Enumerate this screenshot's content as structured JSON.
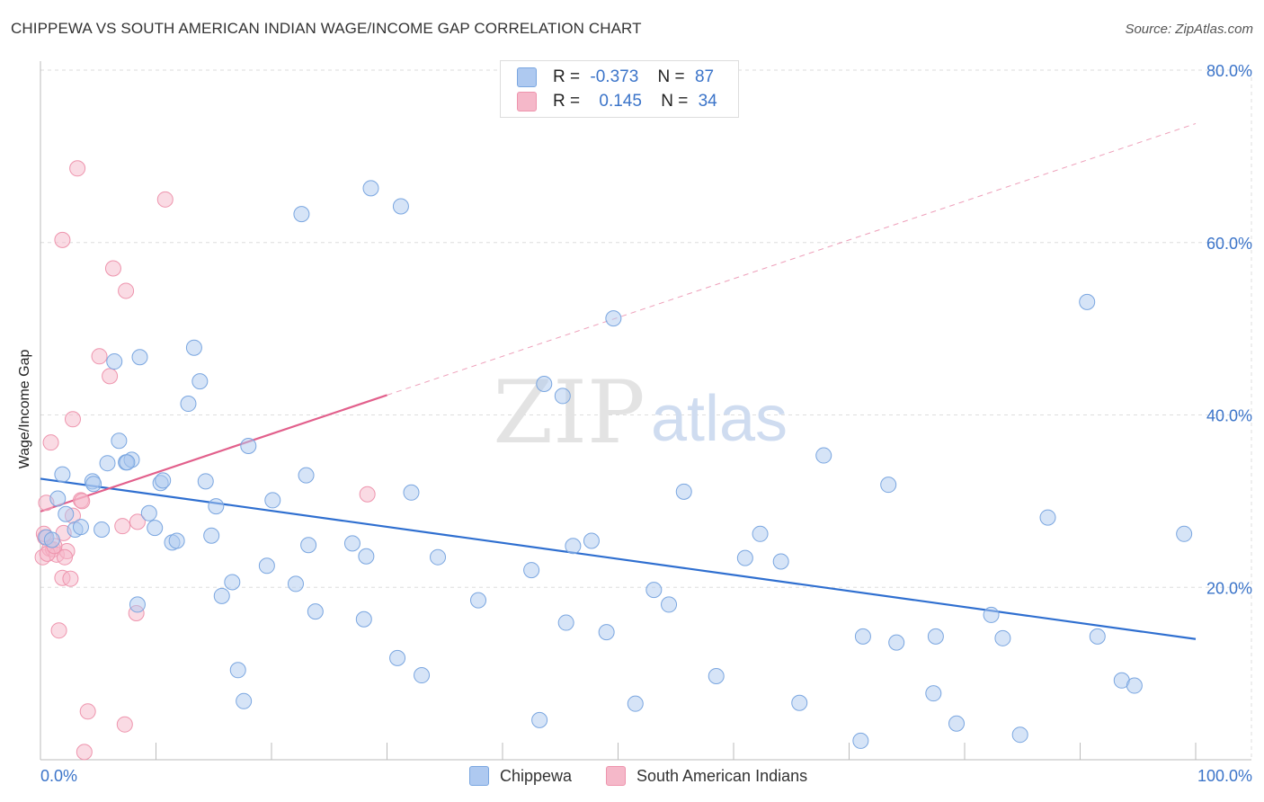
{
  "title": "CHIPPEWA VS SOUTH AMERICAN INDIAN WAGE/INCOME GAP CORRELATION CHART",
  "source": "Source: ZipAtlas.com",
  "watermark": {
    "zip": "ZIP",
    "atlas": "atlas"
  },
  "colors": {
    "blue_fill": "#aec9f0",
    "blue_stroke": "#7aa6e0",
    "blue_line": "#2f6fd0",
    "pink_fill": "#f5b8c9",
    "pink_stroke": "#ee94ad",
    "pink_line": "#e2608c",
    "axis_text": "#3b74c9",
    "grid": "#dddddd"
  },
  "legend": {
    "row1": {
      "r_label": "R =",
      "r_value": "-0.373",
      "n_label": "N =",
      "n_value": "87"
    },
    "row2": {
      "r_label": "R =",
      "r_value": "0.145",
      "n_label": "N =",
      "n_value": "34"
    }
  },
  "chart_data": {
    "type": "scatter",
    "title": "CHIPPEWA VS SOUTH AMERICAN INDIAN WAGE/INCOME GAP CORRELATION CHART",
    "xlabel": "",
    "ylabel": "Wage/Income Gap",
    "xlim": [
      0,
      100
    ],
    "ylim": [
      0,
      80
    ],
    "x_tick_labels": [
      "0.0%",
      "100.0%"
    ],
    "y_ticks": [
      20,
      40,
      60,
      80
    ],
    "y_tick_labels": [
      "20.0%",
      "40.0%",
      "60.0%",
      "80.0%"
    ],
    "grid": true,
    "legend_position": "top-center",
    "series": [
      {
        "name": "Chippewa",
        "color": "#aec9f0",
        "trend": {
          "x": [
            0,
            100
          ],
          "y": [
            32.6,
            14.0
          ],
          "style": "solid"
        },
        "points": [
          [
            0.5,
            25.8
          ],
          [
            1.0,
            25.5
          ],
          [
            1.5,
            30.3
          ],
          [
            1.9,
            33.1
          ],
          [
            2.2,
            28.5
          ],
          [
            3.0,
            26.7
          ],
          [
            3.5,
            27.0
          ],
          [
            4.5,
            32.3
          ],
          [
            5.3,
            26.7
          ],
          [
            5.8,
            34.4
          ],
          [
            6.4,
            46.2
          ],
          [
            6.8,
            37.0
          ],
          [
            7.4,
            34.5
          ],
          [
            7.9,
            34.8
          ],
          [
            8.6,
            46.7
          ],
          [
            8.4,
            18.0
          ],
          [
            9.4,
            28.6
          ],
          [
            9.9,
            26.9
          ],
          [
            10.4,
            32.1
          ],
          [
            10.6,
            32.4
          ],
          [
            11.4,
            25.2
          ],
          [
            11.8,
            25.4
          ],
          [
            12.8,
            41.3
          ],
          [
            13.3,
            47.8
          ],
          [
            13.8,
            43.9
          ],
          [
            14.3,
            32.3
          ],
          [
            14.8,
            26.0
          ],
          [
            15.2,
            29.4
          ],
          [
            15.7,
            19.0
          ],
          [
            16.6,
            20.6
          ],
          [
            17.1,
            10.4
          ],
          [
            17.6,
            6.8
          ],
          [
            18.0,
            36.4
          ],
          [
            19.6,
            22.5
          ],
          [
            20.1,
            30.1
          ],
          [
            22.1,
            20.4
          ],
          [
            22.6,
            63.3
          ],
          [
            23.0,
            33.0
          ],
          [
            23.2,
            24.9
          ],
          [
            23.8,
            17.2
          ],
          [
            27.0,
            25.1
          ],
          [
            28.0,
            16.3
          ],
          [
            28.2,
            23.6
          ],
          [
            28.6,
            66.3
          ],
          [
            30.9,
            11.8
          ],
          [
            31.2,
            64.2
          ],
          [
            32.1,
            31.0
          ],
          [
            33.0,
            9.8
          ],
          [
            34.4,
            23.5
          ],
          [
            37.9,
            18.5
          ],
          [
            42.5,
            22.0
          ],
          [
            43.2,
            4.6
          ],
          [
            43.6,
            43.6
          ],
          [
            45.2,
            42.2
          ],
          [
            45.5,
            15.9
          ],
          [
            46.1,
            24.8
          ],
          [
            47.7,
            25.4
          ],
          [
            49.0,
            14.8
          ],
          [
            49.6,
            51.2
          ],
          [
            51.5,
            6.5
          ],
          [
            53.1,
            19.7
          ],
          [
            54.4,
            18.0
          ],
          [
            55.7,
            31.1
          ],
          [
            58.5,
            9.7
          ],
          [
            61.0,
            23.4
          ],
          [
            62.3,
            26.2
          ],
          [
            64.1,
            23.0
          ],
          [
            65.7,
            6.6
          ],
          [
            67.8,
            35.3
          ],
          [
            71.0,
            2.2
          ],
          [
            71.2,
            14.3
          ],
          [
            73.4,
            31.9
          ],
          [
            74.1,
            13.6
          ],
          [
            77.3,
            7.7
          ],
          [
            77.5,
            14.3
          ],
          [
            79.3,
            4.2
          ],
          [
            82.3,
            16.8
          ],
          [
            83.3,
            14.1
          ],
          [
            84.8,
            2.9
          ],
          [
            87.2,
            28.1
          ],
          [
            90.6,
            53.1
          ],
          [
            91.5,
            14.3
          ],
          [
            93.6,
            9.2
          ],
          [
            94.7,
            8.6
          ],
          [
            99.0,
            26.2
          ],
          [
            7.5,
            34.5
          ],
          [
            4.6,
            32.0
          ]
        ]
      },
      {
        "name": "South American Indians",
        "color": "#f5b8c9",
        "trend": {
          "x": [
            0,
            30
          ],
          "y": [
            28.8,
            42.3
          ],
          "style": "solid",
          "extension": {
            "x": [
              30,
              100
            ],
            "y": [
              42.3,
              73.8
            ],
            "style": "dashed"
          }
        },
        "points": [
          [
            0.2,
            23.5
          ],
          [
            0.4,
            25.8
          ],
          [
            0.5,
            29.8
          ],
          [
            0.8,
            24.5
          ],
          [
            0.9,
            36.8
          ],
          [
            1.1,
            24.4
          ],
          [
            1.4,
            23.8
          ],
          [
            1.6,
            15.0
          ],
          [
            1.9,
            60.3
          ],
          [
            1.9,
            21.1
          ],
          [
            2.0,
            26.3
          ],
          [
            2.3,
            24.2
          ],
          [
            2.6,
            21.0
          ],
          [
            2.8,
            39.5
          ],
          [
            2.8,
            28.3
          ],
          [
            3.2,
            68.6
          ],
          [
            3.5,
            30.1
          ],
          [
            3.6,
            30.0
          ],
          [
            3.8,
            0.9
          ],
          [
            4.1,
            5.6
          ],
          [
            5.1,
            46.8
          ],
          [
            6.0,
            44.5
          ],
          [
            6.3,
            57.0
          ],
          [
            7.1,
            27.1
          ],
          [
            7.3,
            4.1
          ],
          [
            7.4,
            54.4
          ],
          [
            8.3,
            17.0
          ],
          [
            8.4,
            27.6
          ],
          [
            10.8,
            65.0
          ],
          [
            28.3,
            30.8
          ],
          [
            0.3,
            26.2
          ],
          [
            0.6,
            23.9
          ],
          [
            1.2,
            24.8
          ],
          [
            2.1,
            23.5
          ]
        ]
      }
    ]
  }
}
